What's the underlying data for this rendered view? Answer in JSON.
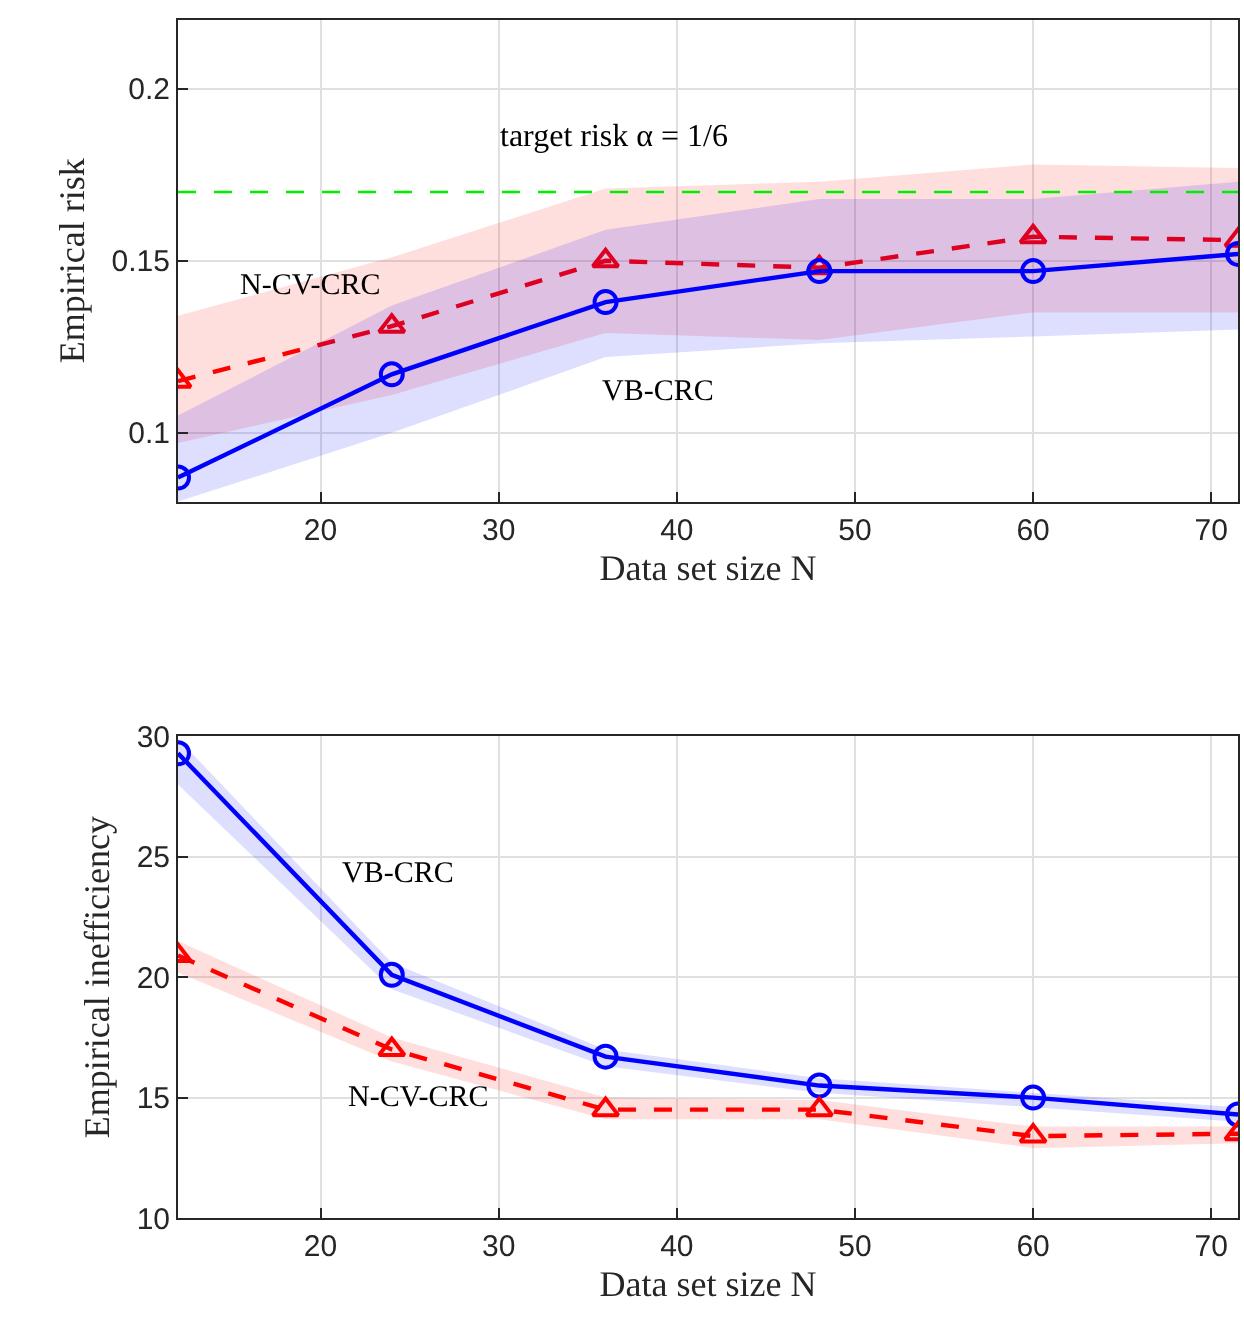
{
  "chart_data": [
    {
      "type": "line",
      "xlabel": "Data set size N",
      "ylabel": "Empirical risk",
      "x": [
        12,
        24,
        36,
        48,
        60,
        71.5
      ],
      "xlim": [
        12,
        71.5
      ],
      "xticks": [
        20,
        30,
        40,
        50,
        60,
        70
      ],
      "ylim": [
        0.08,
        0.22
      ],
      "yticks": [
        0.1,
        0.15,
        0.2
      ],
      "grid": true,
      "series": [
        {
          "name": "N-CV-CRC",
          "color": "#ff0000",
          "marker": "triangle",
          "line_style": "dashed",
          "values": [
            0.115,
            0.131,
            0.15,
            0.148,
            0.157,
            0.156
          ],
          "upper": [
            0.134,
            0.151,
            0.171,
            0.173,
            0.178,
            0.177
          ],
          "lower": [
            0.097,
            0.111,
            0.129,
            0.127,
            0.135,
            0.135
          ]
        },
        {
          "name": "VB-CRC",
          "color": "#0000ff",
          "marker": "circle",
          "line_style": "solid",
          "values": [
            0.087,
            0.117,
            0.138,
            0.147,
            0.147,
            0.152
          ],
          "upper": [
            0.105,
            0.137,
            0.159,
            0.168,
            0.168,
            0.173
          ],
          "lower": [
            0.08,
            0.1,
            0.122,
            0.126,
            0.128,
            0.13
          ]
        }
      ],
      "annotations": [
        "target risk α = 1/6"
      ],
      "ref_lines": [
        {
          "axis": "y",
          "value": 0.17,
          "color": "#00ee00",
          "line_style": "dashed"
        }
      ]
    },
    {
      "type": "line",
      "xlabel": "Data set size N",
      "ylabel": "Empirical inefficiency",
      "x": [
        12,
        24,
        36,
        48,
        60,
        71.5
      ],
      "xlim": [
        12,
        71.5
      ],
      "xticks": [
        20,
        30,
        40,
        50,
        60,
        70
      ],
      "ylim": [
        10,
        30
      ],
      "yticks": [
        10,
        15,
        20,
        25,
        30
      ],
      "grid": true,
      "series": [
        {
          "name": "VB-CRC",
          "color": "#0000ff",
          "marker": "circle",
          "line_style": "solid",
          "values": [
            29.3,
            20.1,
            16.7,
            15.5,
            15.0,
            14.3
          ],
          "upper": [
            29.9,
            20.6,
            17.0,
            15.8,
            15.2,
            14.6
          ],
          "lower": [
            28.0,
            19.5,
            16.3,
            15.2,
            14.6,
            14.0
          ]
        },
        {
          "name": "N-CV-CRC",
          "color": "#ff0000",
          "marker": "triangle",
          "line_style": "dashed",
          "values": [
            20.9,
            17.0,
            14.5,
            14.5,
            13.4,
            13.5
          ],
          "upper": [
            21.5,
            17.5,
            15.0,
            14.9,
            13.8,
            13.8
          ],
          "lower": [
            20.2,
            16.5,
            14.1,
            14.1,
            12.9,
            13.1
          ]
        }
      ]
    }
  ]
}
